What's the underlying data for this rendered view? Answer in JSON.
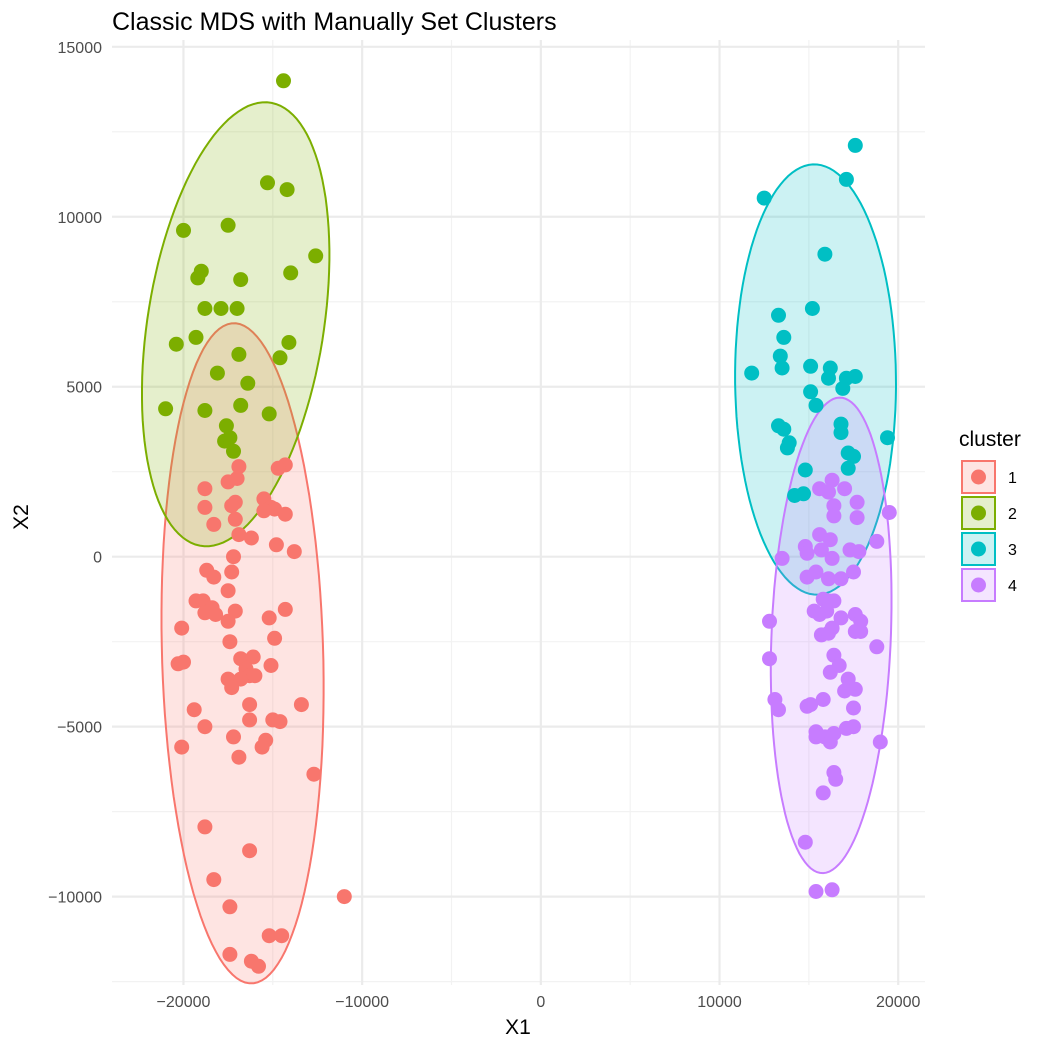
{
  "chart_data": {
    "type": "scatter",
    "title": "Classic MDS with Manually Set Clusters",
    "xlabel": "X1",
    "ylabel": "X2",
    "xlim": [
      -24000,
      21500
    ],
    "ylim": [
      -12600,
      15200
    ],
    "x_ticks": [
      -20000,
      -10000,
      0,
      10000,
      20000
    ],
    "x_tick_labels": [
      "−20000",
      "−10000",
      "0",
      "10000",
      "20000"
    ],
    "y_ticks": [
      -10000,
      -5000,
      0,
      5000,
      10000,
      15000
    ],
    "y_tick_labels": [
      "−10000",
      "−5000",
      "0",
      "5000",
      "10000",
      "15000"
    ],
    "grid": true,
    "legend": {
      "title": "cluster",
      "position": "right"
    },
    "ellipses": true,
    "series": [
      {
        "name": "1",
        "color": "#F8766D",
        "points": [
          [
            -17000,
            2300
          ],
          [
            -16900,
            2650
          ],
          [
            -14300,
            2700
          ],
          [
            -14700,
            2600
          ],
          [
            -18800,
            2000
          ],
          [
            -17500,
            2200
          ],
          [
            -17100,
            1600
          ],
          [
            -15500,
            1700
          ],
          [
            -18800,
            1450
          ],
          [
            -17300,
            1500
          ],
          [
            -15100,
            1450
          ],
          [
            -14900,
            1400
          ],
          [
            -15500,
            1350
          ],
          [
            -14300,
            1250
          ],
          [
            -17100,
            1100
          ],
          [
            -18300,
            950
          ],
          [
            -16900,
            650
          ],
          [
            -16200,
            550
          ],
          [
            -14800,
            350
          ],
          [
            -13800,
            150
          ],
          [
            -17200,
            0
          ],
          [
            -18700,
            -400
          ],
          [
            -17300,
            -450
          ],
          [
            -18300,
            -600
          ],
          [
            -17500,
            -1000
          ],
          [
            -19300,
            -1300
          ],
          [
            -18900,
            -1300
          ],
          [
            -18400,
            -1500
          ],
          [
            -18800,
            -1650
          ],
          [
            -18200,
            -1700
          ],
          [
            -17100,
            -1600
          ],
          [
            -14300,
            -1550
          ],
          [
            -17500,
            -1900
          ],
          [
            -15200,
            -1800
          ],
          [
            -20100,
            -2100
          ],
          [
            -17400,
            -2500
          ],
          [
            -14900,
            -2400
          ],
          [
            -16800,
            -3000
          ],
          [
            -16100,
            -2950
          ],
          [
            -20300,
            -3150
          ],
          [
            -20000,
            -3100
          ],
          [
            -16500,
            -3300
          ],
          [
            -15100,
            -3200
          ],
          [
            -16300,
            -3500
          ],
          [
            -16800,
            -3600
          ],
          [
            -16000,
            -3500
          ],
          [
            -17500,
            -3600
          ],
          [
            -17300,
            -3850
          ],
          [
            -19400,
            -4500
          ],
          [
            -16300,
            -4350
          ],
          [
            -13400,
            -4350
          ],
          [
            -16300,
            -4800
          ],
          [
            -15000,
            -4800
          ],
          [
            -14600,
            -4850
          ],
          [
            -18800,
            -5000
          ],
          [
            -17200,
            -5300
          ],
          [
            -15400,
            -5400
          ],
          [
            -15600,
            -5600
          ],
          [
            -20100,
            -5600
          ],
          [
            -16900,
            -5900
          ],
          [
            -12700,
            -6400
          ],
          [
            -18800,
            -7950
          ],
          [
            -16300,
            -8650
          ],
          [
            -18300,
            -9500
          ],
          [
            -17400,
            -10300
          ],
          [
            -11000,
            -10000
          ],
          [
            -15200,
            -11150
          ],
          [
            -14500,
            -11150
          ],
          [
            -17400,
            -11700
          ],
          [
            -16200,
            -11900
          ],
          [
            -15800,
            -12050
          ]
        ]
      },
      {
        "name": "2",
        "color": "#7CAE00",
        "points": [
          [
            -14400,
            14000
          ],
          [
            -15300,
            11000
          ],
          [
            -14200,
            10800
          ],
          [
            -17500,
            9750
          ],
          [
            -20000,
            9600
          ],
          [
            -12600,
            8850
          ],
          [
            -19000,
            8400
          ],
          [
            -19200,
            8200
          ],
          [
            -16800,
            8150
          ],
          [
            -14000,
            8350
          ],
          [
            -18800,
            7300
          ],
          [
            -17900,
            7300
          ],
          [
            -17000,
            7300
          ],
          [
            -19300,
            6450
          ],
          [
            -20400,
            6250
          ],
          [
            -14100,
            6300
          ],
          [
            -16900,
            5950
          ],
          [
            -14600,
            5850
          ],
          [
            -18100,
            5400
          ],
          [
            -16400,
            5100
          ],
          [
            -21000,
            4350
          ],
          [
            -18800,
            4300
          ],
          [
            -16800,
            4450
          ],
          [
            -15200,
            4200
          ],
          [
            -17600,
            3850
          ],
          [
            -17700,
            3400
          ],
          [
            -17400,
            3500
          ],
          [
            -17200,
            3100
          ]
        ]
      },
      {
        "name": "3",
        "color": "#00BFC4",
        "points": [
          [
            17600,
            12100
          ],
          [
            17100,
            11100
          ],
          [
            12500,
            10550
          ],
          [
            15900,
            8900
          ],
          [
            15200,
            7300
          ],
          [
            13300,
            7100
          ],
          [
            13600,
            6450
          ],
          [
            13400,
            5900
          ],
          [
            13500,
            5550
          ],
          [
            11800,
            5400
          ],
          [
            15100,
            5600
          ],
          [
            16200,
            5550
          ],
          [
            16100,
            5250
          ],
          [
            17600,
            5300
          ],
          [
            17100,
            5250
          ],
          [
            16900,
            4950
          ],
          [
            15100,
            4850
          ],
          [
            15400,
            4450
          ],
          [
            16800,
            3900
          ],
          [
            13300,
            3850
          ],
          [
            13600,
            3750
          ],
          [
            16800,
            3650
          ],
          [
            13900,
            3350
          ],
          [
            13800,
            3200
          ],
          [
            17200,
            3050
          ],
          [
            17500,
            2950
          ],
          [
            19400,
            3500
          ],
          [
            17200,
            2600
          ],
          [
            14800,
            2550
          ],
          [
            14700,
            1850
          ],
          [
            14200,
            1800
          ]
        ]
      },
      {
        "name": "4",
        "color": "#C77CFF",
        "points": [
          [
            16300,
            2250
          ],
          [
            15600,
            2000
          ],
          [
            16100,
            1900
          ],
          [
            17000,
            2000
          ],
          [
            16400,
            1500
          ],
          [
            17700,
            1600
          ],
          [
            16400,
            1200
          ],
          [
            17700,
            1150
          ],
          [
            19500,
            1300
          ],
          [
            15600,
            650
          ],
          [
            16200,
            500
          ],
          [
            18800,
            450
          ],
          [
            15700,
            200
          ],
          [
            14800,
            300
          ],
          [
            17300,
            200
          ],
          [
            17800,
            150
          ],
          [
            14900,
            100
          ],
          [
            13500,
            -50
          ],
          [
            16300,
            -50
          ],
          [
            15400,
            -450
          ],
          [
            14900,
            -600
          ],
          [
            16100,
            -650
          ],
          [
            16800,
            -650
          ],
          [
            17500,
            -450
          ],
          [
            15800,
            -1250
          ],
          [
            16100,
            -1300
          ],
          [
            16400,
            -1300
          ],
          [
            15300,
            -1600
          ],
          [
            15600,
            -1700
          ],
          [
            16000,
            -1600
          ],
          [
            16800,
            -1800
          ],
          [
            17600,
            -1700
          ],
          [
            17900,
            -1900
          ],
          [
            12800,
            -1900
          ],
          [
            16300,
            -2100
          ],
          [
            15700,
            -2300
          ],
          [
            16100,
            -2250
          ],
          [
            17600,
            -2200
          ],
          [
            17900,
            -2200
          ],
          [
            18800,
            -2650
          ],
          [
            16400,
            -2900
          ],
          [
            12800,
            -3000
          ],
          [
            16700,
            -3200
          ],
          [
            16200,
            -3400
          ],
          [
            17200,
            -3600
          ],
          [
            17000,
            -3950
          ],
          [
            17600,
            -3900
          ],
          [
            15800,
            -4200
          ],
          [
            13100,
            -4200
          ],
          [
            13300,
            -4500
          ],
          [
            14900,
            -4400
          ],
          [
            15100,
            -4350
          ],
          [
            17500,
            -4450
          ],
          [
            15400,
            -5150
          ],
          [
            16400,
            -5200
          ],
          [
            17100,
            -5050
          ],
          [
            17500,
            -5000
          ],
          [
            15900,
            -5300
          ],
          [
            15400,
            -5300
          ],
          [
            16200,
            -5450
          ],
          [
            19000,
            -5450
          ],
          [
            16400,
            -6350
          ],
          [
            16500,
            -6550
          ],
          [
            15800,
            -6950
          ],
          [
            14800,
            -8400
          ],
          [
            15400,
            -9850
          ],
          [
            16300,
            -9800
          ]
        ]
      }
    ]
  }
}
